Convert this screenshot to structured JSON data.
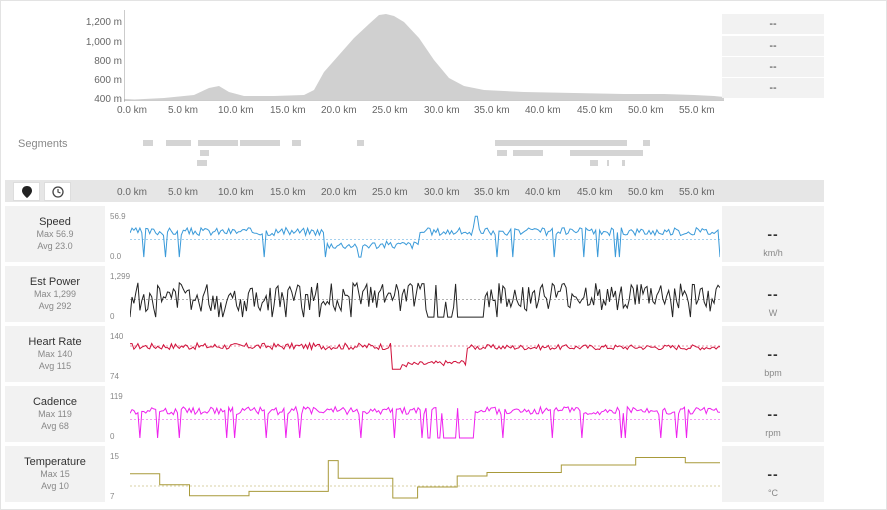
{
  "elevation": {
    "y_labels": [
      "1,200 m",
      "1,000 m",
      "800 m",
      "600 m",
      "400 m"
    ],
    "km_labels": [
      "0.0 km",
      "5.0 km",
      "10.0 km",
      "15.0 km",
      "20.0 km",
      "25.0 km",
      "30.0 km",
      "35.0 km",
      "40.0 km",
      "45.0 km",
      "50.0 km",
      "55.0 km"
    ],
    "side_values": [
      "--",
      "--",
      "--",
      "--"
    ],
    "fill_color": "#d0d0d0"
  },
  "segments_label": "Segments",
  "axis_km_labels": [
    "0.0 km",
    "5.0 km",
    "10.0 km",
    "15.0 km",
    "20.0 km",
    "25.0 km",
    "30.0 km",
    "35.0 km",
    "40.0 km",
    "45.0 km",
    "50.0 km",
    "55.0 km"
  ],
  "tabs": [
    {
      "icon": "map-pin-icon"
    },
    {
      "icon": "clock-icon"
    }
  ],
  "rows": [
    {
      "title": "Speed",
      "max": "Max 56.9",
      "avg": "Avg 23.0",
      "top": "56.9",
      "bottom": "0.0",
      "value": "--",
      "unit": "km/h",
      "color": "#3a9ad9"
    },
    {
      "title": "Est Power",
      "max": "Max 1,299",
      "avg": "Avg 292",
      "top": "1,299",
      "bottom": "0",
      "value": "--",
      "unit": "W",
      "color": "#222222"
    },
    {
      "title": "Heart Rate",
      "max": "Max 140",
      "avg": "Avg 115",
      "top": "140",
      "bottom": "74",
      "value": "--",
      "unit": "bpm",
      "color": "#d0103a"
    },
    {
      "title": "Cadence",
      "max": "Max 119",
      "avg": "Avg 68",
      "top": "119",
      "bottom": "0",
      "value": "--",
      "unit": "rpm",
      "color": "#ee22ee"
    },
    {
      "title": "Temperature",
      "max": "Max 15",
      "avg": "Avg 10",
      "top": "15",
      "bottom": "7",
      "value": "--",
      "unit": "°C",
      "color": "#a89a3a"
    }
  ]
}
